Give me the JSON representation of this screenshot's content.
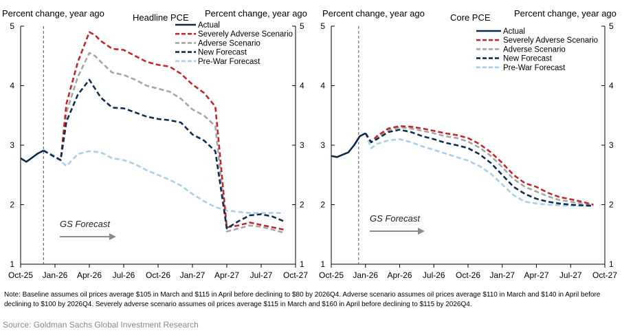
{
  "note": "Note: Baseline assumes oil prices average $105 in March and $115 in April before declining to $80 by 2026Q4. Adverse scenario assumes oil prices average $110 in March and $140 in April before declining to $100 by 2026Q4. Severely adverse scenario assumes oil prices average $115 in March and $160 in April before declining to $115 by 2026Q4.",
  "source": "Source: Goldman Sachs Global Investment Research",
  "colors": {
    "actual": "#0b2a4a",
    "severe": "#c0282d",
    "adverse": "#a6a6a6",
    "new": "#0e2e52",
    "prewar": "#a9d0ea",
    "forecast_text": "#222222",
    "arrow": "#8c8c8c"
  },
  "chart_data": [
    {
      "type": "line",
      "title": "Headline PCE",
      "left_axis_label": "Percent change, year ago",
      "right_axis_label": "Percent change, year ago",
      "ylim": [
        1,
        5
      ],
      "y_ticks": [
        "1",
        "2",
        "3",
        "4",
        "5"
      ],
      "x_ticks": [
        "Oct-25",
        "Jan-26",
        "Apr-26",
        "Jul-26",
        "Oct-26",
        "Jan-27",
        "Apr-27",
        "Jul-27",
        "Oct-27"
      ],
      "x_tick_months": [
        0,
        3,
        6,
        9,
        12,
        15,
        18,
        21,
        24
      ],
      "xlim_months": [
        0,
        24
      ],
      "forecast_start_month": 2,
      "forecast_label": "GS Forecast",
      "series": [
        {
          "name": "Actual",
          "style": "solid",
          "color_key": "actual",
          "x": [
            0,
            0.5,
            1,
            1.5,
            2
          ],
          "values": [
            2.78,
            2.72,
            2.79,
            2.86,
            2.91
          ]
        },
        {
          "name": "Severely Adverse Scenario",
          "style": "dash",
          "color_key": "severe",
          "x": [
            2,
            3,
            3.5,
            4,
            5,
            6,
            6.5,
            7,
            8,
            9,
            10,
            11,
            12,
            13,
            14,
            15,
            16,
            17,
            18,
            19,
            20,
            21,
            22,
            23
          ],
          "values": [
            2.91,
            2.8,
            2.75,
            3.7,
            4.4,
            4.9,
            4.85,
            4.75,
            4.62,
            4.6,
            4.5,
            4.4,
            4.35,
            4.32,
            4.2,
            4.02,
            3.88,
            3.65,
            1.62,
            1.65,
            1.7,
            1.66,
            1.62,
            1.58
          ]
        },
        {
          "name": "Adverse Scenario",
          "style": "dash",
          "color_key": "adverse",
          "x": [
            2,
            3,
            3.5,
            4,
            5,
            6,
            6.5,
            7,
            8,
            9,
            10,
            11,
            12,
            13,
            14,
            15,
            16,
            17,
            18,
            19,
            20,
            21,
            22,
            23
          ],
          "values": [
            2.91,
            2.8,
            2.75,
            3.55,
            4.15,
            4.55,
            4.5,
            4.4,
            4.22,
            4.18,
            4.1,
            4.0,
            3.95,
            3.9,
            3.78,
            3.6,
            3.5,
            3.32,
            1.55,
            1.6,
            1.65,
            1.63,
            1.58,
            1.53
          ]
        },
        {
          "name": "New Forecast",
          "style": "dash",
          "color_key": "new",
          "x": [
            2,
            3,
            3.5,
            4,
            5,
            6,
            6.5,
            7,
            8,
            9,
            10,
            11,
            12,
            13,
            14,
            15,
            16,
            17,
            18,
            19,
            20,
            21,
            22,
            23
          ],
          "values": [
            2.91,
            2.8,
            2.75,
            3.4,
            3.85,
            4.1,
            3.95,
            3.8,
            3.63,
            3.62,
            3.55,
            3.48,
            3.44,
            3.42,
            3.38,
            3.18,
            3.08,
            2.9,
            1.6,
            1.72,
            1.82,
            1.84,
            1.8,
            1.72
          ]
        },
        {
          "name": "Pre-War Forecast",
          "style": "dash",
          "color_key": "prewar",
          "x": [
            2,
            3,
            4,
            5,
            6,
            7,
            8,
            9,
            10,
            11,
            12,
            13,
            14,
            15,
            16,
            17,
            18,
            19,
            20,
            21,
            22,
            23
          ],
          "values": [
            2.91,
            2.82,
            2.65,
            2.85,
            2.9,
            2.88,
            2.78,
            2.75,
            2.68,
            2.58,
            2.5,
            2.42,
            2.32,
            2.18,
            2.06,
            1.96,
            1.9,
            1.88,
            1.86,
            1.86,
            1.86,
            1.86
          ]
        }
      ]
    },
    {
      "type": "line",
      "title": "Core PCE",
      "left_axis_label": "Percent change, year ago",
      "right_axis_label": "Percent change, year ago",
      "ylim": [
        1,
        5
      ],
      "y_ticks": [
        "1",
        "2",
        "3",
        "4",
        "5"
      ],
      "x_ticks": [
        "Oct-25",
        "Jan-26",
        "Apr-26",
        "Jul-26",
        "Oct-26",
        "Jan-27",
        "Apr-27",
        "Jul-27",
        "Oct-27"
      ],
      "x_tick_months": [
        0,
        3,
        6,
        9,
        12,
        15,
        18,
        21,
        24
      ],
      "xlim_months": [
        0,
        24
      ],
      "forecast_start_month": 2.4,
      "forecast_label": "GS Forecast",
      "series": [
        {
          "name": "Actual",
          "style": "solid",
          "color_key": "actual",
          "x": [
            0,
            0.5,
            1,
            1.5,
            2,
            2.5,
            3
          ],
          "values": [
            2.82,
            2.8,
            2.84,
            2.88,
            3.0,
            3.15,
            3.2
          ]
        },
        {
          "name": "Severely Adverse Scenario",
          "style": "dash",
          "color_key": "severe",
          "x": [
            3,
            3.5,
            4,
            5,
            6,
            7,
            8,
            9,
            10,
            11,
            12,
            13,
            14,
            15,
            16,
            17,
            18,
            19,
            20,
            21,
            22,
            23
          ],
          "values": [
            3.2,
            3.05,
            3.15,
            3.28,
            3.32,
            3.31,
            3.28,
            3.24,
            3.2,
            3.17,
            3.12,
            3.02,
            2.88,
            2.7,
            2.5,
            2.36,
            2.3,
            2.2,
            2.13,
            2.09,
            2.05,
            2.0
          ]
        },
        {
          "name": "Adverse Scenario",
          "style": "dash",
          "color_key": "adverse",
          "x": [
            3,
            3.5,
            4,
            5,
            6,
            7,
            8,
            9,
            10,
            11,
            12,
            13,
            14,
            15,
            16,
            17,
            18,
            19,
            20,
            21,
            22,
            23
          ],
          "values": [
            3.2,
            3.05,
            3.12,
            3.25,
            3.3,
            3.28,
            3.24,
            3.2,
            3.15,
            3.12,
            3.06,
            2.96,
            2.82,
            2.63,
            2.43,
            2.3,
            2.22,
            2.14,
            2.08,
            2.05,
            2.02,
            1.99
          ]
        },
        {
          "name": "New Forecast",
          "style": "dash",
          "color_key": "new",
          "x": [
            3,
            3.5,
            4,
            5,
            6,
            7,
            8,
            9,
            10,
            11,
            12,
            13,
            14,
            15,
            16,
            17,
            18,
            19,
            20,
            21,
            22,
            23
          ],
          "values": [
            3.2,
            3.05,
            3.1,
            3.22,
            3.26,
            3.22,
            3.15,
            3.1,
            3.04,
            3.0,
            2.95,
            2.85,
            2.7,
            2.5,
            2.3,
            2.18,
            2.1,
            2.05,
            2.02,
            2.0,
            1.99,
            1.98
          ]
        },
        {
          "name": "Pre-War Forecast",
          "style": "dash",
          "color_key": "prewar",
          "x": [
            3,
            3.5,
            4,
            5,
            6,
            7,
            8,
            9,
            10,
            11,
            12,
            13,
            14,
            15,
            16,
            17,
            18,
            19,
            20,
            21,
            22,
            23
          ],
          "values": [
            3.2,
            2.95,
            3.02,
            3.08,
            3.1,
            3.05,
            2.98,
            2.92,
            2.86,
            2.8,
            2.74,
            2.65,
            2.52,
            2.34,
            2.16,
            2.05,
            2.02,
            2.0,
            1.99,
            1.98,
            1.98,
            1.98
          ]
        }
      ]
    }
  ]
}
